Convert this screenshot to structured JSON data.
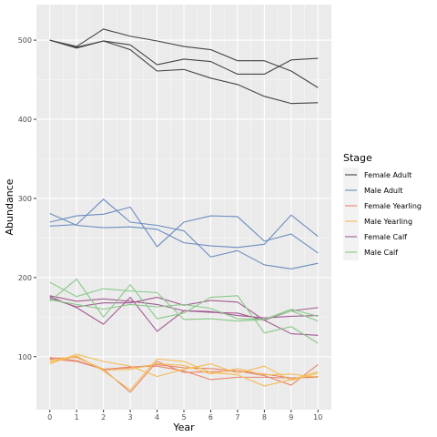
{
  "chart_data": {
    "type": "line",
    "xlabel": "Year",
    "ylabel": "Abundance",
    "x": [
      0,
      1,
      2,
      3,
      4,
      5,
      6,
      7,
      8,
      9,
      10
    ],
    "xlim": [
      -0.5,
      10.5
    ],
    "ylim": [
      33,
      545
    ],
    "xticks": [
      0,
      1,
      2,
      3,
      4,
      5,
      6,
      7,
      8,
      9,
      10
    ],
    "yticks": [
      100,
      200,
      300,
      400,
      500
    ],
    "grid": true,
    "legend": {
      "title": "Stage",
      "placement": "right",
      "entries": [
        "Female Adult",
        "Male Adult",
        "Female Yearling",
        "Male Yearling",
        "Female Calf",
        "Male Calf"
      ]
    },
    "series": [
      {
        "name": "Female Adult",
        "color": "#444444",
        "values": [
          500,
          490,
          499,
          488,
          461,
          463,
          452,
          444,
          429,
          420,
          421
        ]
      },
      {
        "name": "Female Adult",
        "color": "#444444",
        "values": [
          500,
          492,
          514,
          505,
          499,
          492,
          488,
          474,
          474,
          461,
          440
        ]
      },
      {
        "name": "Female Adult",
        "color": "#444444",
        "values": [
          500,
          491,
          499,
          494,
          469,
          476,
          473,
          457,
          457,
          475,
          477
        ]
      },
      {
        "name": "Male Adult",
        "color": "#6b8cc0",
        "values": [
          281,
          266,
          263,
          264,
          261,
          244,
          240,
          238,
          242,
          279,
          252
        ]
      },
      {
        "name": "Male Adult",
        "color": "#6b8cc0",
        "values": [
          265,
          267,
          299,
          270,
          266,
          259,
          226,
          234,
          216,
          211,
          218
        ]
      },
      {
        "name": "Male Adult",
        "color": "#6b8cc0",
        "values": [
          270,
          278,
          280,
          289,
          239,
          270,
          278,
          277,
          246,
          255,
          231
        ]
      },
      {
        "name": "Female Yearling",
        "color": "#e8866a",
        "values": [
          99,
          95,
          84,
          86,
          90,
          86,
          85,
          82,
          78,
          73,
          74
        ]
      },
      {
        "name": "Female Yearling",
        "color": "#e8866a",
        "values": [
          98,
          99,
          84,
          55,
          94,
          80,
          81,
          82,
          76,
          64,
          90
        ]
      },
      {
        "name": "Female Yearling",
        "color": "#e8866a",
        "values": [
          97,
          94,
          84,
          87,
          88,
          82,
          71,
          74,
          74,
          73,
          75
        ]
      },
      {
        "name": "Male Yearling",
        "color": "#f4bc56",
        "values": [
          91,
          103,
          94,
          88,
          75,
          84,
          91,
          79,
          88,
          70,
          79
        ]
      },
      {
        "name": "Male Yearling",
        "color": "#f4bc56",
        "values": [
          95,
          101,
          82,
          58,
          97,
          94,
          80,
          77,
          63,
          71,
          81
        ]
      },
      {
        "name": "Male Yearling",
        "color": "#f4bc56",
        "values": [
          93,
          100,
          83,
          84,
          91,
          89,
          78,
          85,
          77,
          78,
          74
        ]
      },
      {
        "name": "Female Calf",
        "color": "#a45a93",
        "values": [
          176,
          162,
          141,
          175,
          132,
          158,
          156,
          155,
          146,
          129,
          127
        ]
      },
      {
        "name": "Female Calf",
        "color": "#a45a93",
        "values": [
          174,
          163,
          168,
          168,
          175,
          165,
          171,
          169,
          146,
          158,
          162
        ]
      },
      {
        "name": "Female Calf",
        "color": "#a45a93",
        "values": [
          177,
          170,
          173,
          170,
          166,
          158,
          157,
          152,
          149,
          151,
          152
        ]
      },
      {
        "name": "Male Calf",
        "color": "#88c888",
        "values": [
          194,
          176,
          186,
          183,
          181,
          147,
          148,
          145,
          147,
          158,
          145
        ]
      },
      {
        "name": "Male Calf",
        "color": "#88c888",
        "values": [
          170,
          198,
          150,
          191,
          148,
          155,
          175,
          177,
          130,
          138,
          117
        ]
      },
      {
        "name": "Male Calf",
        "color": "#88c888",
        "values": [
          172,
          166,
          160,
          166,
          163,
          166,
          161,
          148,
          147,
          160,
          151
        ]
      }
    ]
  }
}
